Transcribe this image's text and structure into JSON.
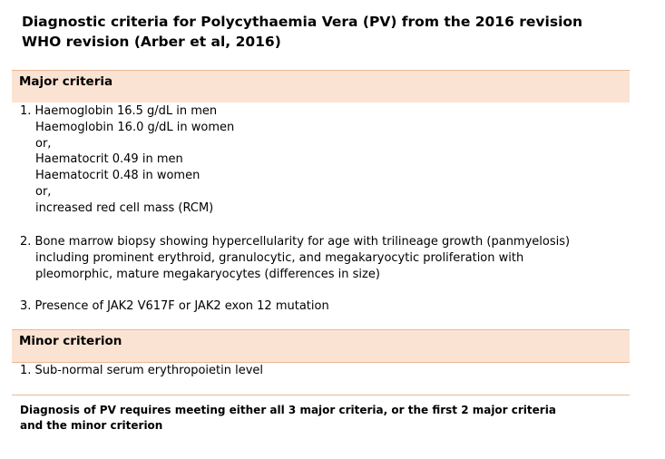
{
  "title": {
    "line1": "Diagnostic  criteria  for Polycythaemia  Vera (PV) from the 2016 revision",
    "line2": "WHO revision  (Arber et al, 2016)"
  },
  "major": {
    "heading": "Major criteria",
    "criterion1": [
      "1.  Haemoglobin  16.5 g/dL in men",
      "Haemoglobin  16.0 g/dL in women",
      "or,",
      "Haematocrit  0.49 in men",
      "Haematocrit  0.48 in women",
      "or,",
      "increased red cell mass (RCM)"
    ],
    "criterion2": [
      "2. Bone marrow biopsy showing hypercellularity  for age with trilineage growth (panmyelosis)",
      "including prominent erythroid, granulocytic, and megakaryocytic proliferation with",
      "pleomorphic, mature megakaryocytes (differences in size)"
    ],
    "criterion3": "3. Presence of JAK2 V617F or JAK2 exon 12 mutation"
  },
  "minor": {
    "heading": "Minor criterion",
    "criterion1": "1. Sub-normal serum erythropoietin level"
  },
  "footer": {
    "line1": "Diagnosis  of PV requires meeting either all 3 major criteria, or the first 2 major criteria",
    "line2": "and the minor criterion"
  }
}
